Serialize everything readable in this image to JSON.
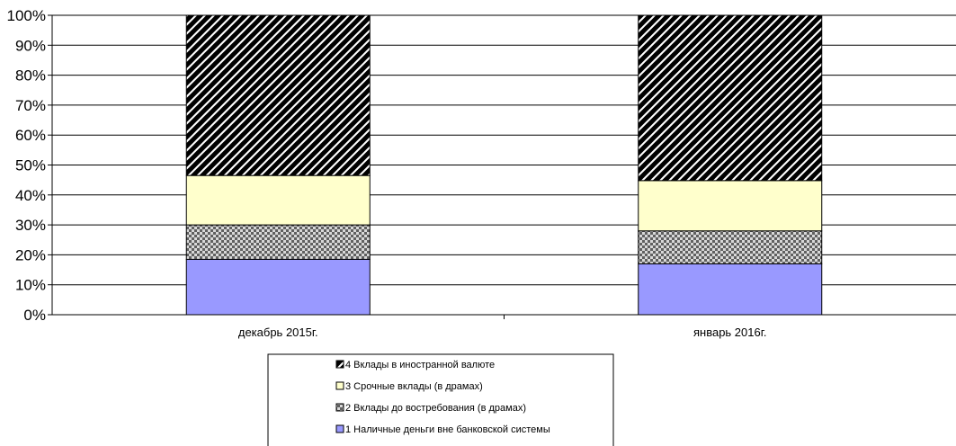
{
  "chart_data": {
    "type": "bar",
    "stacked": true,
    "normalized_percent": true,
    "categories": [
      "декабрь 2015г.",
      "январь  2016г."
    ],
    "series": [
      {
        "name": "1 Наличные деньги вне банковской системы",
        "values": [
          18.5,
          17
        ],
        "color": "#9999ff",
        "pattern": "solid"
      },
      {
        "name": "2 Вклады до востребования (в драмах)",
        "values": [
          11.5,
          11
        ],
        "color": "#808080",
        "pattern": "checker"
      },
      {
        "name": "3 Срочные вклады (в драмах)",
        "values": [
          16.5,
          16.8
        ],
        "color": "#ffffcc",
        "pattern": "solid"
      },
      {
        "name": "4 Вклады в иностранной валюте",
        "values": [
          53.5,
          55.2
        ],
        "color": "#000000",
        "pattern": "diagonal-stripes"
      }
    ],
    "y_ticks": [
      "0%",
      "10%",
      "20%",
      "30%",
      "40%",
      "50%",
      "60%",
      "70%",
      "80%",
      "90%",
      "100%"
    ],
    "ylim": [
      0,
      100
    ],
    "grid": true,
    "legend_position": "bottom",
    "legend_order": [
      3,
      2,
      1,
      0
    ]
  }
}
